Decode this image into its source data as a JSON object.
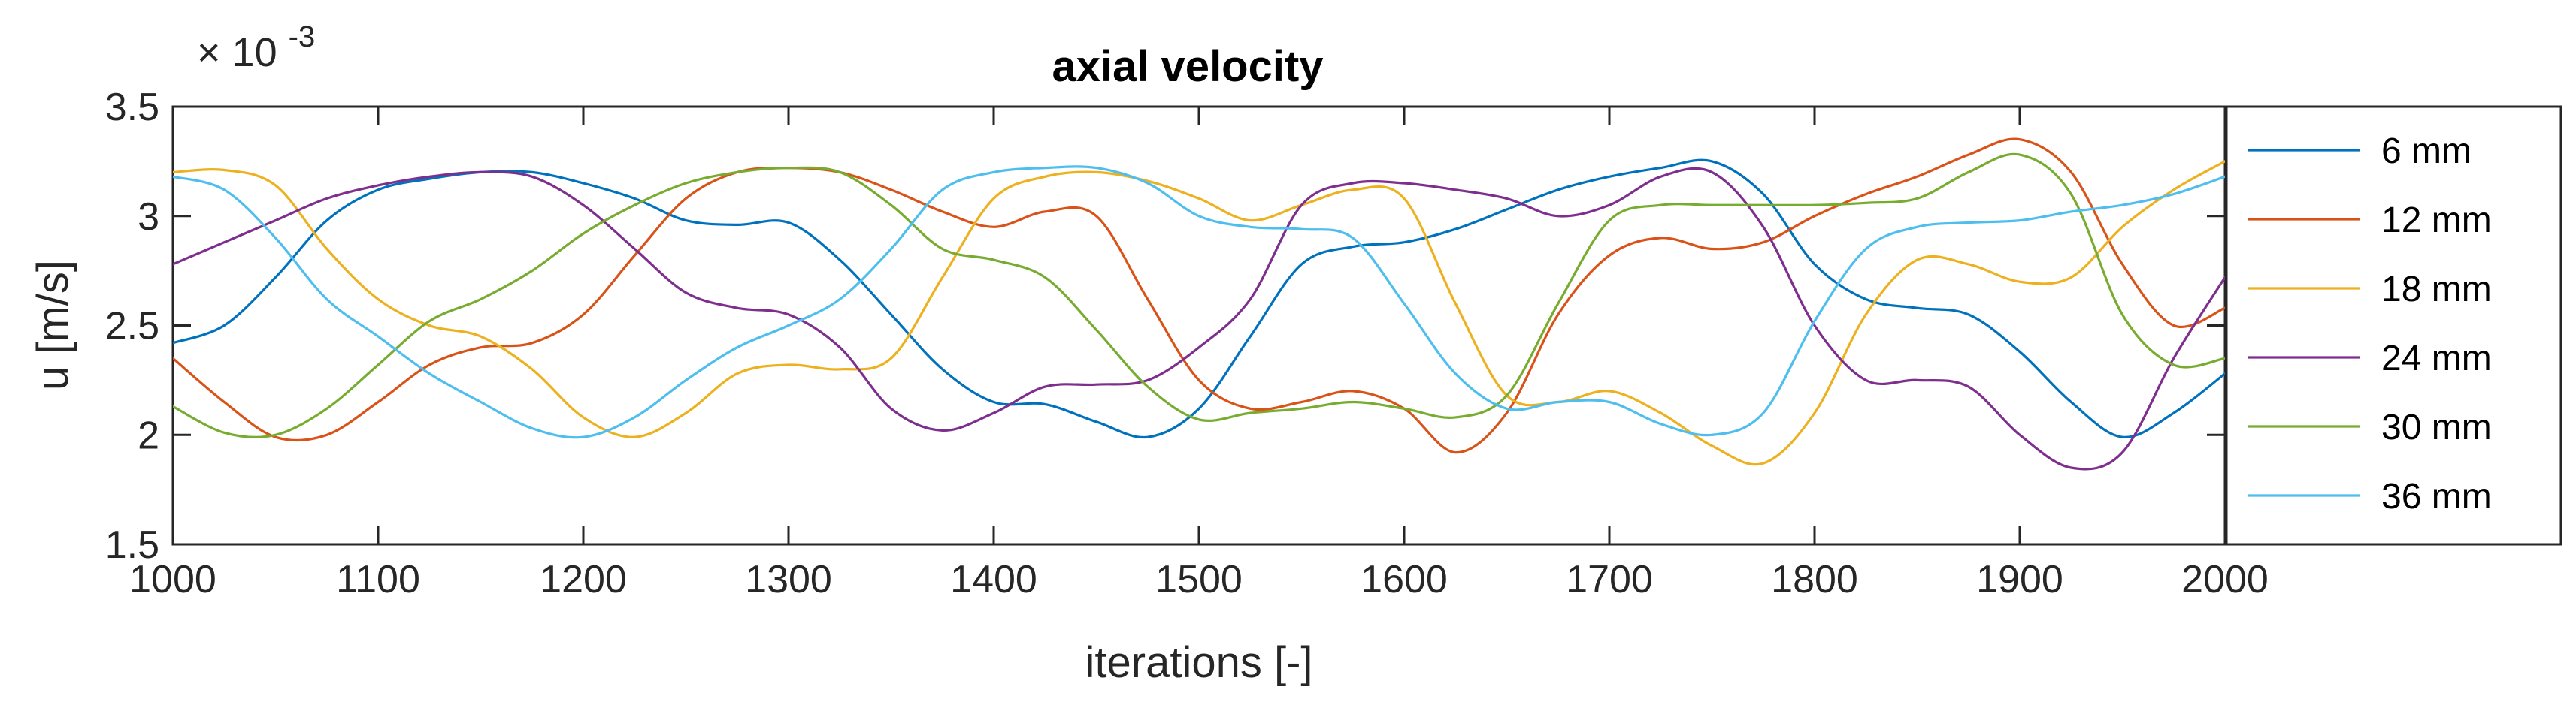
{
  "chart_data": {
    "type": "line",
    "title": "axial velocity",
    "xlabel": "iterations [-]",
    "ylabel": "u [m/s]",
    "y_multiplier": {
      "base": "× 10",
      "exponent": "-3"
    },
    "xlim": [
      1000,
      2000
    ],
    "ylim": [
      1.5,
      3.5
    ],
    "xticks": [
      1000,
      1100,
      1200,
      1300,
      1400,
      1500,
      1600,
      1700,
      1800,
      1900,
      2000
    ],
    "xtick_labels": [
      "1000",
      "1100",
      "1200",
      "1300",
      "1400",
      "1500",
      "1600",
      "1700",
      "1800",
      "1900",
      "2000"
    ],
    "yticks": [
      1.5,
      2,
      2.5,
      3,
      3.5
    ],
    "ytick_labels": [
      "1.5",
      "2",
      "2.5",
      "3",
      "3.5"
    ],
    "grid": false,
    "legend_position": "outside-right",
    "x": [
      1000,
      1025,
      1050,
      1075,
      1100,
      1125,
      1150,
      1175,
      1200,
      1225,
      1250,
      1275,
      1300,
      1325,
      1350,
      1375,
      1400,
      1425,
      1450,
      1475,
      1500,
      1525,
      1550,
      1575,
      1600,
      1625,
      1650,
      1675,
      1700,
      1725,
      1750,
      1775,
      1800,
      1825,
      1850,
      1875,
      1900,
      1925,
      1950,
      1975,
      2000
    ],
    "series": [
      {
        "name": "6 mm",
        "color": "#0072BD",
        "values": [
          2.42,
          2.5,
          2.72,
          2.98,
          3.12,
          3.17,
          3.2,
          3.2,
          3.15,
          3.08,
          2.98,
          2.96,
          2.97,
          2.8,
          2.55,
          2.3,
          2.15,
          2.14,
          2.06,
          1.99,
          2.12,
          2.45,
          2.78,
          2.86,
          2.88,
          2.94,
          3.03,
          3.12,
          3.18,
          3.22,
          3.25,
          3.1,
          2.78,
          2.62,
          2.58,
          2.55,
          2.38,
          2.15,
          1.99,
          2.1,
          2.28
        ]
      },
      {
        "name": "12 mm",
        "color": "#D95319",
        "values": [
          2.35,
          2.15,
          1.99,
          2.0,
          2.15,
          2.32,
          2.4,
          2.42,
          2.55,
          2.82,
          3.08,
          3.2,
          3.22,
          3.2,
          3.12,
          3.02,
          2.95,
          3.02,
          3.0,
          2.62,
          2.25,
          2.12,
          2.15,
          2.2,
          2.12,
          1.92,
          2.1,
          2.55,
          2.82,
          2.9,
          2.85,
          2.88,
          3.0,
          3.1,
          3.18,
          3.28,
          3.35,
          3.2,
          2.78,
          2.5,
          2.58
        ]
      },
      {
        "name": "18 mm",
        "color": "#EDB120",
        "values": [
          3.2,
          3.21,
          3.14,
          2.85,
          2.62,
          2.5,
          2.45,
          2.3,
          2.08,
          1.99,
          2.1,
          2.28,
          2.32,
          2.3,
          2.35,
          2.72,
          3.08,
          3.18,
          3.2,
          3.16,
          3.08,
          2.98,
          3.05,
          3.12,
          3.08,
          2.6,
          2.18,
          2.15,
          2.2,
          2.1,
          1.95,
          1.87,
          2.1,
          2.55,
          2.8,
          2.78,
          2.7,
          2.72,
          2.95,
          3.12,
          3.25
        ]
      },
      {
        "name": "24 mm",
        "color": "#7E2F8E",
        "values": [
          2.78,
          2.88,
          2.98,
          3.08,
          3.14,
          3.18,
          3.2,
          3.18,
          3.05,
          2.85,
          2.65,
          2.58,
          2.55,
          2.4,
          2.12,
          2.02,
          2.1,
          2.22,
          2.23,
          2.25,
          2.4,
          2.62,
          3.05,
          3.15,
          3.15,
          3.12,
          3.08,
          3.0,
          3.05,
          3.18,
          3.2,
          2.95,
          2.5,
          2.25,
          2.25,
          2.22,
          2.0,
          1.85,
          1.92,
          2.35,
          2.72
        ]
      },
      {
        "name": "30 mm",
        "color": "#77AC30",
        "values": [
          2.13,
          2.01,
          2.0,
          2.12,
          2.32,
          2.52,
          2.62,
          2.75,
          2.92,
          3.05,
          3.15,
          3.2,
          3.22,
          3.2,
          3.05,
          2.85,
          2.8,
          2.72,
          2.48,
          2.22,
          2.07,
          2.1,
          2.12,
          2.15,
          2.12,
          2.08,
          2.18,
          2.6,
          2.98,
          3.05,
          3.05,
          3.05,
          3.05,
          3.06,
          3.08,
          3.2,
          3.28,
          3.1,
          2.55,
          2.32,
          2.35
        ]
      },
      {
        "name": "36 mm",
        "color": "#4DBEEE",
        "values": [
          3.18,
          3.12,
          2.9,
          2.62,
          2.45,
          2.28,
          2.15,
          2.03,
          1.99,
          2.08,
          2.25,
          2.4,
          2.5,
          2.62,
          2.85,
          3.12,
          3.2,
          3.22,
          3.22,
          3.15,
          3.0,
          2.95,
          2.94,
          2.9,
          2.6,
          2.28,
          2.12,
          2.15,
          2.15,
          2.05,
          2.0,
          2.1,
          2.52,
          2.85,
          2.95,
          2.97,
          2.98,
          3.02,
          3.05,
          3.1,
          3.18
        ]
      }
    ]
  }
}
